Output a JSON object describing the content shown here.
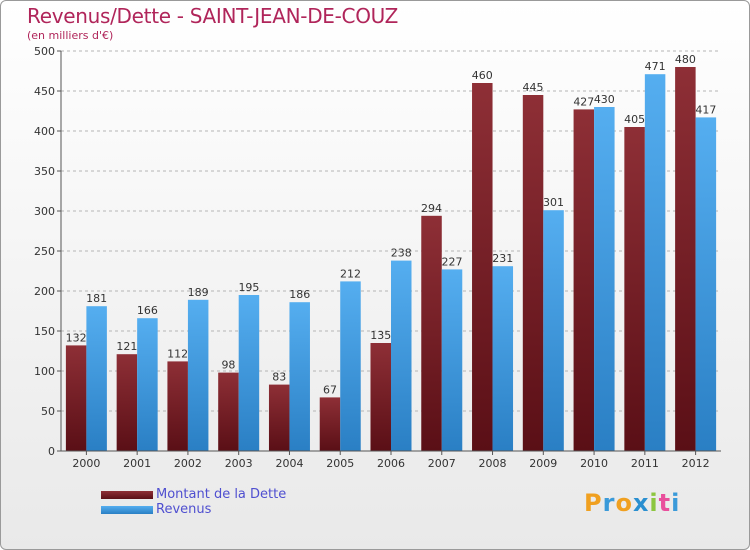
{
  "title": "Revenus/Dette - SAINT-JEAN-DE-COUZ",
  "subtitle": "(en milliers d'€)",
  "logo": {
    "letters": [
      "P",
      "r",
      "o",
      "x",
      "i",
      "t",
      "i"
    ],
    "colors": [
      "#f0a020",
      "#3a9ad9",
      "#f0a020",
      "#2a8fd0",
      "#8cc63f",
      "#e94f9c",
      "#3a9ad9"
    ]
  },
  "chart_data": {
    "type": "bar",
    "categories": [
      "2000",
      "2001",
      "2002",
      "2003",
      "2004",
      "2005",
      "2006",
      "2007",
      "2008",
      "2009",
      "2010",
      "2011",
      "2012"
    ],
    "series": [
      {
        "name": "Montant de la Dette",
        "values": [
          132,
          121,
          112,
          98,
          83,
          67,
          135,
          294,
          460,
          445,
          427,
          405,
          480
        ],
        "color": "#7a1f27"
      },
      {
        "name": "Revenus",
        "values": [
          181,
          166,
          189,
          195,
          186,
          212,
          238,
          227,
          231,
          301,
          430,
          471,
          417
        ],
        "color": "#3d9ae0"
      }
    ],
    "ylim": [
      0,
      500
    ],
    "yticks": [
      0,
      50,
      100,
      150,
      200,
      250,
      300,
      350,
      400,
      450,
      500
    ],
    "grid": true,
    "legend": "bottom-left"
  }
}
